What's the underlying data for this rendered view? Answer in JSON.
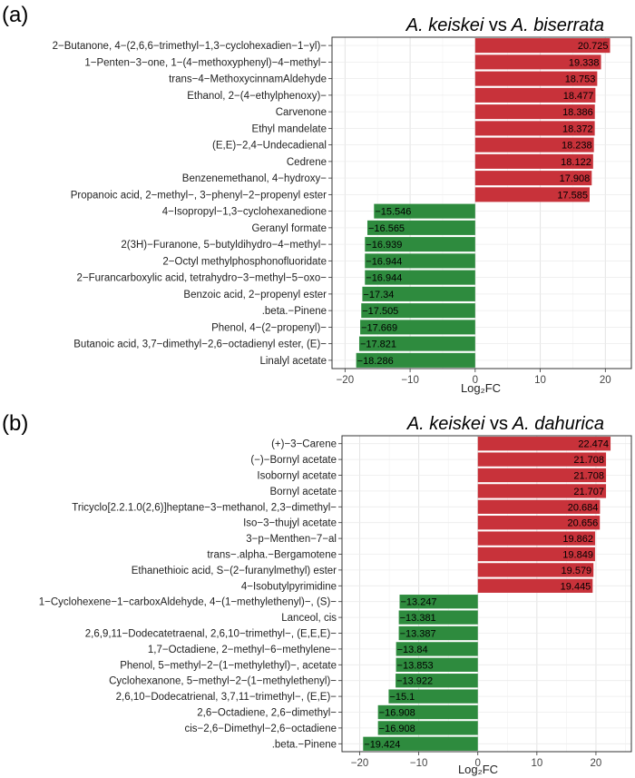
{
  "chart_data": [
    {
      "panel": "(a)",
      "type": "bar",
      "orientation": "horizontal",
      "title": {
        "species1": "A. keiskei",
        "vs": "vs",
        "species2": "A. biserrata"
      },
      "xlabel": "Log₂FC",
      "xlim": [
        -22,
        24
      ],
      "xticks": [
        -20,
        -10,
        0,
        10,
        20
      ],
      "colors": {
        "positive": "#c8323a",
        "negative": "#2e8b3e"
      },
      "categories": [
        "2−Butanone, 4−(2,6,6−trimethyl−1,3−cyclohexadien−1−yl)−",
        "1−Penten−3−one, 1−(4−methoxyphenyl)−4−methyl−",
        "trans−4−MethoxycinnamAldehyde",
        "Ethanol, 2−(4−ethylphenoxy)−",
        "Carvenone",
        "Ethyl mandelate",
        "(E,E)−2,4−Undecadienal",
        "Cedrene",
        "Benzenemethanol, 4−hydroxy−",
        "Propanoic acid, 2−methyl−, 3−phenyl−2−propenyl ester",
        "4−Isopropyl−1,3−cyclohexanedione",
        "Geranyl formate",
        "2(3H)−Furanone, 5−butyldihydro−4−methyl−",
        "2−Octyl methylphosphonofluoridate",
        "2−Furancarboxylic acid, tetrahydro−3−methyl−5−oxo−",
        "Benzoic acid, 2−propenyl ester",
        ".beta.−Pinene",
        "Phenol, 4−(2−propenyl)−",
        "Butanoic acid, 3,7−dimethyl−2,6−octadienyl ester, (E)−",
        "Linalyl acetate"
      ],
      "values": [
        20.725,
        19.338,
        18.753,
        18.477,
        18.386,
        18.372,
        18.238,
        18.122,
        17.908,
        17.585,
        -15.546,
        -16.565,
        -16.939,
        -16.944,
        -16.944,
        -17.34,
        -17.505,
        -17.669,
        -17.821,
        -18.286
      ],
      "value_labels": [
        "20.725",
        "19.338",
        "18.753",
        "18.477",
        "18.386",
        "18.372",
        "18.238",
        "18.122",
        "17.908",
        "17.585",
        "−15.546",
        "−16.565",
        "−16.939",
        "−16.944",
        "−16.944",
        "−17.34",
        "−17.505",
        "−17.669",
        "−17.821",
        "−18.286"
      ],
      "tick_labels": [
        "−20",
        "−10",
        "0",
        "10",
        "20"
      ]
    },
    {
      "panel": "(b)",
      "type": "bar",
      "orientation": "horizontal",
      "title": {
        "species1": "A. keiskei",
        "vs": "vs",
        "species2": "A. dahurica"
      },
      "xlabel": "Log₂FC",
      "xlim": [
        -23,
        26
      ],
      "xticks": [
        -20,
        -10,
        0,
        10,
        20
      ],
      "colors": {
        "positive": "#c8323a",
        "negative": "#2e8b3e"
      },
      "categories": [
        "(+)−3−Carene",
        "(−)−Bornyl acetate",
        "Isobornyl acetate",
        "Bornyl acetate",
        "Tricyclo[2.2.1.0(2,6)]heptane−3−methanol, 2,3−dimethyl−",
        "Iso−3−thujyl acetate",
        "3−p−Menthen−7−al",
        "trans−.alpha.−Bergamotene",
        "Ethanethioic acid, S−(2−furanylmethyl) ester",
        "4−Isobutylpyrimidine",
        "1−Cyclohexene−1−carboxAldehyde, 4−(1−methylethenyl)−, (S)−",
        "Lanceol, cis",
        "2,6,9,11−Dodecatetraenal, 2,6,10−trimethyl−, (E,E,E)−",
        "1,7−Octadiene, 2−methyl−6−methylene−",
        "Phenol, 5−methyl−2−(1−methylethyl)−, acetate",
        "Cyclohexanone, 5−methyl−2−(1−methylethenyl)−",
        "2,6,10−Dodecatrienal, 3,7,11−trimethyl−, (E,E)−",
        "2,6−Octadiene, 2,6−dimethyl−",
        "cis−2,6−Dimethyl−2,6−octadiene",
        ".beta.−Pinene"
      ],
      "values": [
        22.474,
        21.708,
        21.708,
        21.707,
        20.684,
        20.656,
        19.862,
        19.849,
        19.579,
        19.445,
        -13.247,
        -13.381,
        -13.387,
        -13.84,
        -13.853,
        -13.922,
        -15.1,
        -16.908,
        -16.908,
        -19.424
      ],
      "value_labels": [
        "22.474",
        "21.708",
        "21.708",
        "21.707",
        "20.684",
        "20.656",
        "19.862",
        "19.849",
        "19.579",
        "19.445",
        "−13.247",
        "−13.381",
        "−13.387",
        "−13.84",
        "−13.853",
        "−13.922",
        "−15.1",
        "−16.908",
        "−16.908",
        "−19.424"
      ],
      "tick_labels": [
        "−20",
        "−10",
        "0",
        "10",
        "20"
      ]
    }
  ]
}
